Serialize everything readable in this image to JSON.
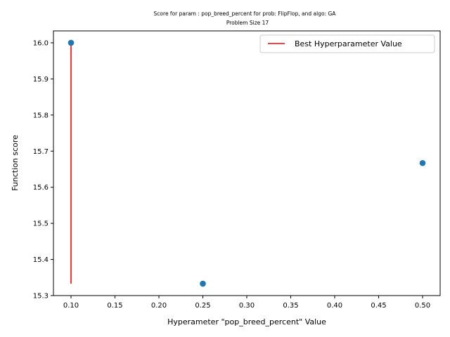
{
  "chart_data": {
    "type": "scatter",
    "title": "Score for param : pop_breed_percent for prob: FlipFlop, and algo: GA",
    "subtitle": "Problem Size 17",
    "xlabel": "Hyperameter \"pop_breed_percent\" Value",
    "ylabel": "Function score",
    "xlim": [
      0.08,
      0.52
    ],
    "ylim": [
      15.3,
      16.033
    ],
    "xticks": [
      "0.10",
      "0.15",
      "0.20",
      "0.25",
      "0.30",
      "0.35",
      "0.40",
      "0.45",
      "0.50"
    ],
    "yticks": [
      "15.3",
      "15.4",
      "15.5",
      "15.6",
      "15.7",
      "15.8",
      "15.9",
      "16.0"
    ],
    "grid": false,
    "legend_position": "top-right",
    "series": [
      {
        "x": [
          0.1,
          0.25,
          0.5
        ],
        "y": [
          16.0,
          15.333,
          15.667
        ],
        "color": "#1f77b4"
      }
    ],
    "best_line": {
      "name": "Best Hyperparameter Value",
      "x": 0.1,
      "y_range": [
        15.333,
        16.0
      ],
      "color": "#ff0000"
    }
  }
}
